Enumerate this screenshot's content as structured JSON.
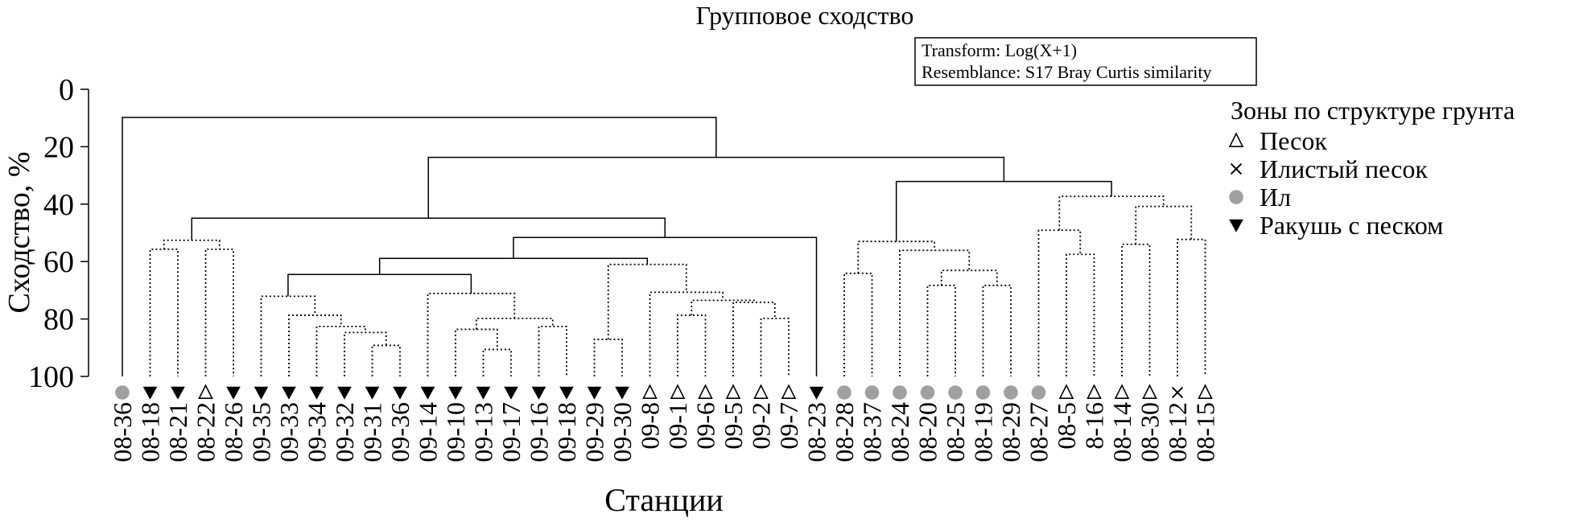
{
  "chart_data": {
    "type": "dendrogram",
    "title": "Групповое сходство",
    "notes": [
      "Transform: Log(X+1)",
      "Resemblance: S17 Bray Curtis similarity"
    ],
    "y_label": "Сходство, %",
    "x_label": "Станции",
    "ylim": [
      0,
      100
    ],
    "y_inverted": true,
    "yticks": [
      0,
      20,
      40,
      60,
      80,
      100
    ],
    "legend_title": "Зоны по структуре грунта",
    "zones": [
      {
        "name": "Песок",
        "marker": "triangle-open",
        "color": "#000000"
      },
      {
        "name": "Илистый песок",
        "marker": "x",
        "color": "#000000"
      },
      {
        "name": "Ил",
        "marker": "circle",
        "color": "#a0a0a0"
      },
      {
        "name": "Ракушь с песком",
        "marker": "triangle-down",
        "color": "#000000"
      }
    ],
    "leaves": [
      {
        "label": "08-36",
        "zone": 2
      },
      {
        "label": "08-18",
        "zone": 3
      },
      {
        "label": "08-21",
        "zone": 3
      },
      {
        "label": "08-22",
        "zone": 0
      },
      {
        "label": "08-26",
        "zone": 3
      },
      {
        "label": "09-35",
        "zone": 3
      },
      {
        "label": "09-33",
        "zone": 3
      },
      {
        "label": "09-34",
        "zone": 3
      },
      {
        "label": "09-32",
        "zone": 3
      },
      {
        "label": "09-31",
        "zone": 3
      },
      {
        "label": "09-36",
        "zone": 3
      },
      {
        "label": "09-14",
        "zone": 3
      },
      {
        "label": "09-10",
        "zone": 3
      },
      {
        "label": "09-13",
        "zone": 3
      },
      {
        "label": "09-17",
        "zone": 3
      },
      {
        "label": "09-16",
        "zone": 3
      },
      {
        "label": "09-18",
        "zone": 3
      },
      {
        "label": "09-29",
        "zone": 3
      },
      {
        "label": "09-30",
        "zone": 3
      },
      {
        "label": "09-8",
        "zone": 0
      },
      {
        "label": "09-1",
        "zone": 0
      },
      {
        "label": "09-6",
        "zone": 0
      },
      {
        "label": "09-5",
        "zone": 0
      },
      {
        "label": "09-2",
        "zone": 0
      },
      {
        "label": "09-7",
        "zone": 0
      },
      {
        "label": "08-23",
        "zone": 3
      },
      {
        "label": "08-28",
        "zone": 2
      },
      {
        "label": "08-37",
        "zone": 2
      },
      {
        "label": "08-24",
        "zone": 2
      },
      {
        "label": "08-20",
        "zone": 2
      },
      {
        "label": "08-25",
        "zone": 2
      },
      {
        "label": "08-19",
        "zone": 2
      },
      {
        "label": "08-29",
        "zone": 2
      },
      {
        "label": "08-27",
        "zone": 2
      },
      {
        "label": "08-5",
        "zone": 0
      },
      {
        "label": "8-16",
        "zone": 0
      },
      {
        "label": "08-14",
        "zone": 0
      },
      {
        "label": "08-30",
        "zone": 0
      },
      {
        "label": "08-12",
        "zone": 1
      },
      {
        "label": "08-15",
        "zone": 0
      }
    ],
    "merges": [
      {
        "nodes": [
          1,
          2
        ],
        "height": 55.7,
        "dotted": true
      },
      {
        "nodes": [
          3,
          4
        ],
        "height": 55.7,
        "dotted": true
      },
      {
        "nodes": [
          40,
          41
        ],
        "height": 52.6,
        "dotted": true
      },
      {
        "nodes": [
          9,
          10
        ],
        "height": 89.2,
        "dotted": true
      },
      {
        "nodes": [
          8,
          43
        ],
        "height": 84.7,
        "dotted": true
      },
      {
        "nodes": [
          7,
          44
        ],
        "height": 82.6,
        "dotted": true
      },
      {
        "nodes": [
          6,
          45
        ],
        "height": 78.7,
        "dotted": true
      },
      {
        "nodes": [
          5,
          46
        ],
        "height": 72.1,
        "dotted": true
      },
      {
        "nodes": [
          13,
          14
        ],
        "height": 90.6,
        "dotted": true
      },
      {
        "nodes": [
          12,
          48
        ],
        "height": 83.6,
        "dotted": true
      },
      {
        "nodes": [
          15,
          16
        ],
        "height": 82.6,
        "dotted": true
      },
      {
        "nodes": [
          49,
          50
        ],
        "height": 79.8,
        "dotted": true
      },
      {
        "nodes": [
          11,
          51
        ],
        "height": 71.1,
        "dotted": true
      },
      {
        "nodes": [
          47,
          52
        ],
        "height": 64.5,
        "dotted": false
      },
      {
        "nodes": [
          17,
          18
        ],
        "height": 87.1,
        "dotted": true
      },
      {
        "nodes": [
          20,
          21
        ],
        "height": 78.7,
        "dotted": true
      },
      {
        "nodes": [
          23,
          24
        ],
        "height": 79.8,
        "dotted": true
      },
      {
        "nodes": [
          22,
          56
        ],
        "height": 74.2,
        "dotted": true
      },
      {
        "nodes": [
          55,
          57
        ],
        "height": 73.5,
        "dotted": true
      },
      {
        "nodes": [
          19,
          58
        ],
        "height": 70.7,
        "dotted": true
      },
      {
        "nodes": [
          54,
          59
        ],
        "height": 61.0,
        "dotted": true
      },
      {
        "nodes": [
          53,
          60
        ],
        "height": 58.9,
        "dotted": false
      },
      {
        "nodes": [
          61,
          25
        ],
        "height": 51.6,
        "dotted": false
      },
      {
        "nodes": [
          42,
          62
        ],
        "height": 44.9,
        "dotted": false
      },
      {
        "nodes": [
          26,
          27
        ],
        "height": 64.1,
        "dotted": true
      },
      {
        "nodes": [
          29,
          30
        ],
        "height": 68.3,
        "dotted": true
      },
      {
        "nodes": [
          31,
          32
        ],
        "height": 68.3,
        "dotted": true
      },
      {
        "nodes": [
          65,
          66
        ],
        "height": 63.1,
        "dotted": true
      },
      {
        "nodes": [
          28,
          67
        ],
        "height": 56.1,
        "dotted": true
      },
      {
        "nodes": [
          64,
          68
        ],
        "height": 53.0,
        "dotted": true
      },
      {
        "nodes": [
          34,
          35
        ],
        "height": 57.5,
        "dotted": true
      },
      {
        "nodes": [
          33,
          70
        ],
        "height": 49.1,
        "dotted": true
      },
      {
        "nodes": [
          36,
          37
        ],
        "height": 54.0,
        "dotted": true
      },
      {
        "nodes": [
          38,
          39
        ],
        "height": 52.3,
        "dotted": true
      },
      {
        "nodes": [
          72,
          73
        ],
        "height": 40.8,
        "dotted": true
      },
      {
        "nodes": [
          71,
          74
        ],
        "height": 37.3,
        "dotted": true
      },
      {
        "nodes": [
          69,
          75
        ],
        "height": 32.1,
        "dotted": false
      },
      {
        "nodes": [
          63,
          76
        ],
        "height": 23.7,
        "dotted": false
      },
      {
        "nodes": [
          0,
          77
        ],
        "height": 9.8,
        "dotted": false
      }
    ]
  }
}
